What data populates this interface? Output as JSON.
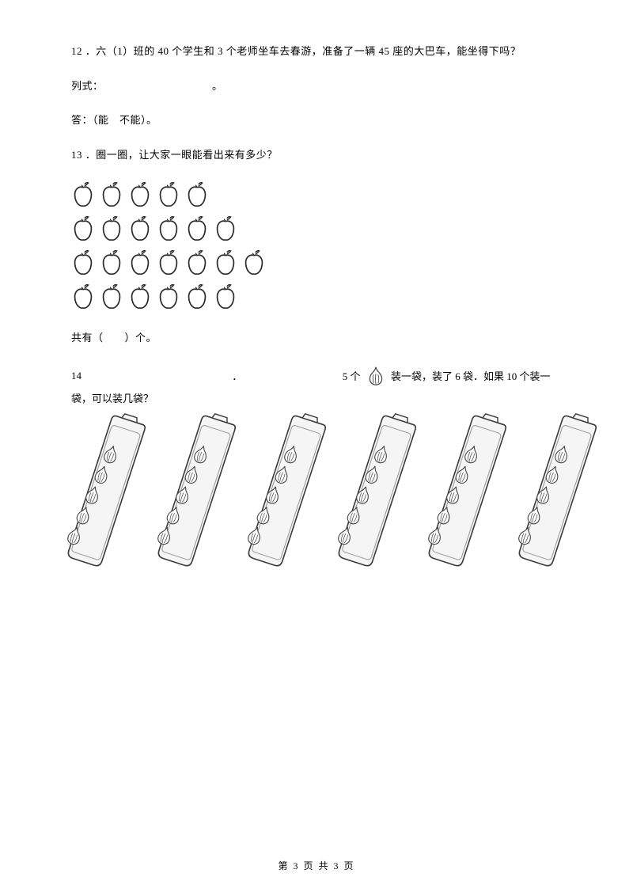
{
  "q12": {
    "text": "12 ．六（1）班的 40 个学生和 3 个老师坐车去春游，准备了一辆 45 座的大巴车，能坐得下吗？",
    "equation_label": "列式：",
    "equation_end": "。",
    "answer_label": "答：（能　不能）。"
  },
  "q13": {
    "text": "13 ．圈一圈，让大家一眼能看出来有多少？",
    "rows": [
      5,
      6,
      7,
      6
    ],
    "apple_size": 30,
    "apple_stroke": "#2a2a2a",
    "apple_fill": "#ffffff",
    "summary": "共有（　　）个。"
  },
  "q14": {
    "prefix": "14",
    "dot": "．",
    "text_a": "5 个",
    "text_b": "装一袋，装了 6 袋．如果 10 个装一袋，可以装几袋？",
    "bag_count": 6,
    "garlic_per_bag": 5,
    "bag_stroke": "#3a3a3a",
    "bag_fill": "#f5f5f5",
    "garlic_stroke": "#444444",
    "garlic_fill": "#fdfdfd"
  },
  "footer": "第 3 页 共 3 页"
}
